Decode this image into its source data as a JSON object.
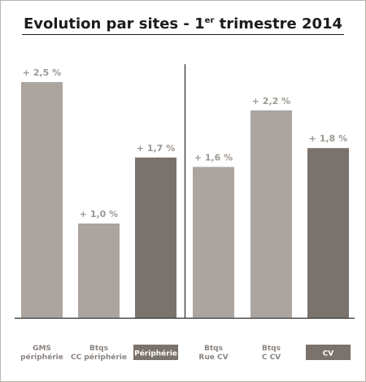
{
  "chart_data": {
    "type": "bar",
    "title": {
      "prefix": "Evolution par sites - 1",
      "sup": "er",
      "suffix": " trimestre 2014"
    },
    "ylim": [
      0,
      2.6
    ],
    "categories": [
      "GMS\npériphérie",
      "Btqs\nCC périphérie",
      "Périphérie",
      "Btqs\nRue CV",
      "Btqs\nC CV",
      "CV"
    ],
    "values": [
      2.5,
      1.0,
      1.7,
      1.6,
      2.2,
      1.8
    ],
    "value_labels": [
      "+ 2,5 %",
      "+ 1,0 %",
      "+ 1,7 %",
      "+ 1,6 %",
      "+ 2,2 %",
      "+ 1,8 %"
    ],
    "highlight": [
      false,
      false,
      true,
      false,
      false,
      true
    ],
    "colors": {
      "bar": "#aba49f",
      "highlight": "#7a726c",
      "label": "#9e9893",
      "category": "#8a8480",
      "highlight_text": "#ffffff"
    }
  }
}
